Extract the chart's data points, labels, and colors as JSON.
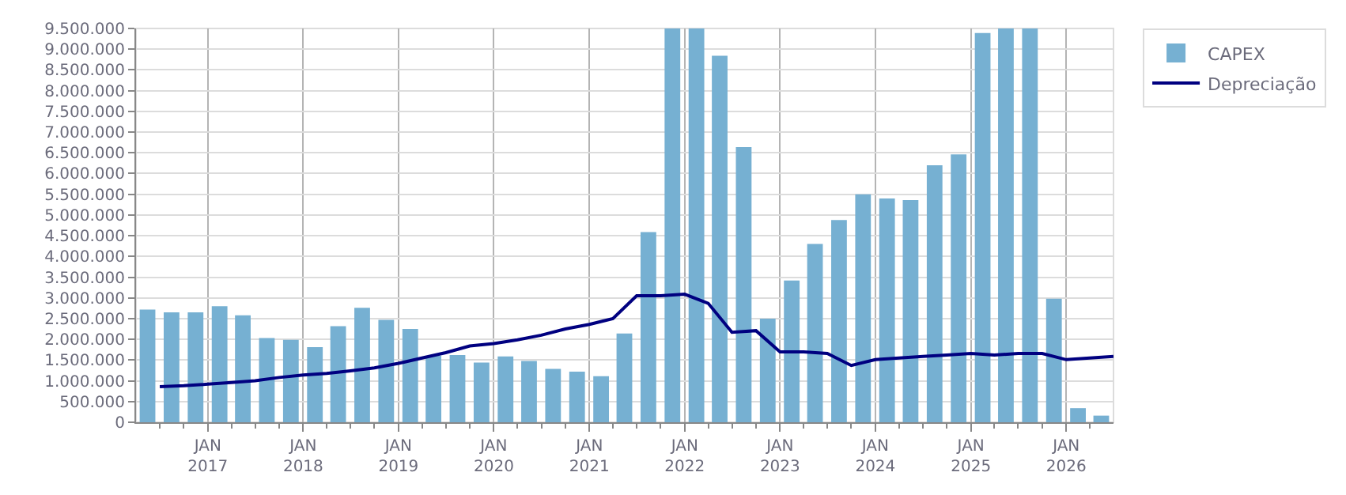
{
  "chart_data": {
    "type": "bar",
    "x": [
      "2016-05-15",
      "2016-08-15",
      "2016-11-15",
      "2017-02-15",
      "2017-05-15",
      "2017-08-15",
      "2017-11-15",
      "2018-02-15",
      "2018-05-15",
      "2018-08-15",
      "2018-11-15",
      "2019-02-15",
      "2019-05-15",
      "2019-08-15",
      "2019-11-15",
      "2020-02-15",
      "2020-05-15",
      "2020-08-15",
      "2020-11-15",
      "2021-02-15",
      "2021-05-15",
      "2021-08-15",
      "2021-11-15",
      "2022-02-15",
      "2022-05-15",
      "2022-08-15",
      "2022-11-15",
      "2023-02-15",
      "2023-05-15",
      "2023-08-15",
      "2023-11-15",
      "2024-02-15",
      "2024-05-15",
      "2024-08-15",
      "2024-11-15",
      "2025-02-15",
      "2025-05-15",
      "2025-08-15",
      "2025-11-15",
      "2026-02-15",
      "2026-05-15"
    ],
    "series": [
      {
        "name": "CAPEX",
        "color": "#76b0d2",
        "values": [
          2720000,
          2650000,
          2650000,
          2800000,
          2580000,
          2030000,
          1990000,
          1810000,
          2320000,
          2760000,
          2470000,
          2250000,
          1600000,
          1620000,
          1440000,
          1590000,
          1480000,
          1290000,
          1220000,
          1110000,
          2140000,
          4590000,
          9500000,
          9500000,
          8840000,
          6640000,
          2500000,
          3420000,
          4300000,
          4880000,
          5500000,
          5400000,
          5360000,
          6200000,
          6460000,
          9390000,
          9500000,
          9500000,
          2980000,
          340000,
          160000
        ]
      },
      {
        "name": "Depreciação",
        "type": "line",
        "color": "#000080",
        "x": [
          "2016-07-01",
          "2016-10-01",
          "2017-01-01",
          "2017-04-01",
          "2017-07-01",
          "2017-10-01",
          "2018-01-01",
          "2018-04-01",
          "2018-07-01",
          "2018-10-01",
          "2019-01-01",
          "2019-04-01",
          "2019-07-01",
          "2019-10-01",
          "2020-01-01",
          "2020-04-01",
          "2020-07-01",
          "2020-10-01",
          "2021-01-01",
          "2021-04-01",
          "2021-07-01",
          "2021-10-01",
          "2022-01-01",
          "2022-04-01",
          "2022-07-01",
          "2022-10-01",
          "2023-01-01",
          "2023-04-01",
          "2023-07-01",
          "2023-10-01",
          "2024-01-01",
          "2024-04-01",
          "2024-07-01",
          "2024-10-01",
          "2025-01-01",
          "2025-04-01",
          "2025-07-01",
          "2025-10-01",
          "2026-01-01",
          "2026-04-01",
          "2026-07-01"
        ],
        "values": [
          860000,
          880000,
          920000,
          960000,
          1000000,
          1080000,
          1140000,
          1180000,
          1240000,
          1310000,
          1420000,
          1550000,
          1680000,
          1840000,
          1900000,
          1990000,
          2100000,
          2250000,
          2360000,
          2500000,
          3050000,
          3050000,
          3090000,
          2870000,
          2170000,
          2210000,
          1700000,
          1700000,
          1660000,
          1370000,
          1510000,
          1550000,
          1590000,
          1620000,
          1660000,
          1620000,
          1660000,
          1660000,
          1510000,
          1550000,
          1590000
        ]
      }
    ],
    "xlim": [
      "2016-04-01",
      "2026-07-01"
    ],
    "xticks": [
      {
        "value": "2016-07-01",
        "label": null
      },
      {
        "value": "2016-10-01",
        "label": null
      },
      {
        "value": "2017-01-01",
        "label": "JAN\n2017"
      },
      {
        "value": "2017-04-01",
        "label": null
      },
      {
        "value": "2017-07-01",
        "label": null
      },
      {
        "value": "2017-10-01",
        "label": null
      },
      {
        "value": "2018-01-01",
        "label": "JAN\n2018"
      },
      {
        "value": "2018-04-01",
        "label": null
      },
      {
        "value": "2018-07-01",
        "label": null
      },
      {
        "value": "2018-10-01",
        "label": null
      },
      {
        "value": "2019-01-01",
        "label": "JAN\n2019"
      },
      {
        "value": "2019-04-01",
        "label": null
      },
      {
        "value": "2019-07-01",
        "label": null
      },
      {
        "value": "2019-10-01",
        "label": null
      },
      {
        "value": "2020-01-01",
        "label": "JAN\n2020"
      },
      {
        "value": "2020-04-01",
        "label": null
      },
      {
        "value": "2020-07-01",
        "label": null
      },
      {
        "value": "2020-10-01",
        "label": null
      },
      {
        "value": "2021-01-01",
        "label": "JAN\n2021"
      },
      {
        "value": "2021-04-01",
        "label": null
      },
      {
        "value": "2021-07-01",
        "label": null
      },
      {
        "value": "2021-10-01",
        "label": null
      },
      {
        "value": "2022-01-01",
        "label": "JAN\n2022"
      },
      {
        "value": "2022-04-01",
        "label": null
      },
      {
        "value": "2022-07-01",
        "label": null
      },
      {
        "value": "2022-10-01",
        "label": null
      },
      {
        "value": "2023-01-01",
        "label": "JAN\n2023"
      },
      {
        "value": "2023-04-01",
        "label": null
      },
      {
        "value": "2023-07-01",
        "label": null
      },
      {
        "value": "2023-10-01",
        "label": null
      },
      {
        "value": "2024-01-01",
        "label": "JAN\n2024"
      },
      {
        "value": "2024-04-01",
        "label": null
      },
      {
        "value": "2024-07-01",
        "label": null
      },
      {
        "value": "2024-10-01",
        "label": null
      },
      {
        "value": "2025-01-01",
        "label": "JAN\n2025"
      },
      {
        "value": "2025-04-01",
        "label": null
      },
      {
        "value": "2025-07-01",
        "label": null
      },
      {
        "value": "2025-10-01",
        "label": null
      },
      {
        "value": "2026-01-01",
        "label": "JAN\n2026"
      },
      {
        "value": "2026-04-01",
        "label": null
      }
    ],
    "ylim": [
      0,
      9500000
    ],
    "yticks": [
      0,
      {
        "value": 500000,
        "label": "500.000"
      },
      {
        "value": 1000000,
        "label": "1.000.000"
      },
      {
        "value": 1500000,
        "label": "1.500.000"
      },
      {
        "value": 2000000,
        "label": "2.000.000"
      },
      {
        "value": 2500000,
        "label": "2.500.000"
      },
      {
        "value": 3000000,
        "label": "3.000.000"
      },
      {
        "value": 3500000,
        "label": "3.500.000"
      },
      {
        "value": 4000000,
        "label": "4.000.000"
      },
      {
        "value": 4500000,
        "label": "4.500.000"
      },
      {
        "value": 5000000,
        "label": "5.000.000"
      },
      {
        "value": 5500000,
        "label": "5.500.000"
      },
      {
        "value": 6000000,
        "label": "6.000.000"
      },
      {
        "value": 6500000,
        "label": "6.500.000"
      },
      {
        "value": 7000000,
        "label": "7.000.000"
      },
      {
        "value": 7500000,
        "label": "7.500.000"
      },
      {
        "value": 8000000,
        "label": "8.000.000"
      },
      {
        "value": 8500000,
        "label": "8.500.000"
      },
      {
        "value": 9000000,
        "label": "9.000.000"
      },
      {
        "value": 9500000,
        "label": "9.500.000"
      }
    ],
    "grid": true,
    "legend": "top right",
    "marker": "none",
    "line_style": "solid"
  }
}
